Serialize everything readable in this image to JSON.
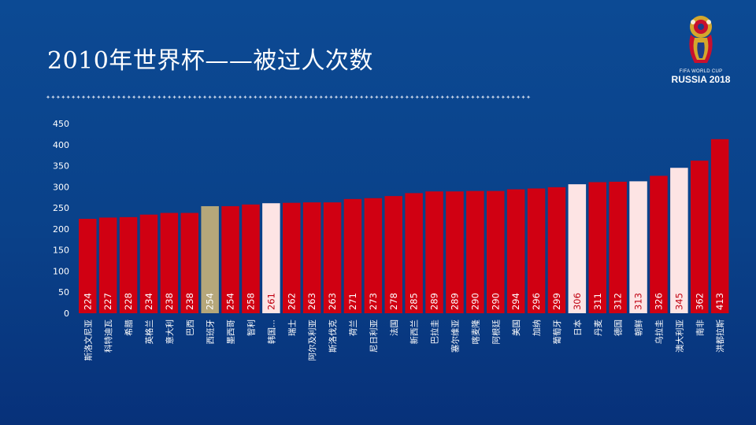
{
  "slide": {
    "title": "2010年世界杯——被过人次数",
    "logo": {
      "line1": "FIFA WORLD CUP",
      "line2": "RUSSIA 2018"
    }
  },
  "colors": {
    "background": "#0b4690",
    "bar_default": "#d00012",
    "bar_highlight_light": "#fde4e4",
    "bar_highlight_gold": "#b5a77a",
    "axis_text": "#ffffff"
  },
  "chart_data": {
    "type": "bar",
    "title": "",
    "xlabel": "",
    "ylabel": "",
    "ylim": [
      0,
      450
    ],
    "yticks": [
      0,
      50,
      100,
      150,
      200,
      250,
      300,
      350,
      400,
      450
    ],
    "grid": false,
    "categories": [
      "斯洛文尼亚",
      "科特迪瓦",
      "希腊",
      "英格兰",
      "意大利",
      "巴西",
      "西班牙",
      "墨西哥",
      "智利",
      "韩国...",
      "瑞士",
      "阿尔及利亚",
      "斯洛伐克",
      "荷兰",
      "尼日利亚",
      "法国",
      "新西兰",
      "巴拉圭",
      "塞尔维亚",
      "喀麦隆",
      "阿根廷",
      "美国",
      "加纳",
      "葡萄牙",
      "日本",
      "丹麦",
      "德国",
      "朝鲜",
      "乌拉圭",
      "澳大利亚",
      "南非",
      "洪都拉斯"
    ],
    "values": [
      224,
      227,
      228,
      234,
      238,
      238,
      254,
      254,
      258,
      261,
      262,
      263,
      263,
      271,
      273,
      278,
      285,
      289,
      289,
      290,
      290,
      294,
      296,
      299,
      306,
      311,
      312,
      313,
      326,
      345,
      362,
      413
    ],
    "highlight": [
      "default",
      "default",
      "default",
      "default",
      "default",
      "default",
      "gold",
      "default",
      "default",
      "light",
      "default",
      "default",
      "default",
      "default",
      "default",
      "default",
      "default",
      "default",
      "default",
      "default",
      "default",
      "default",
      "default",
      "default",
      "light",
      "default",
      "default",
      "light",
      "default",
      "light",
      "default",
      "default"
    ]
  }
}
